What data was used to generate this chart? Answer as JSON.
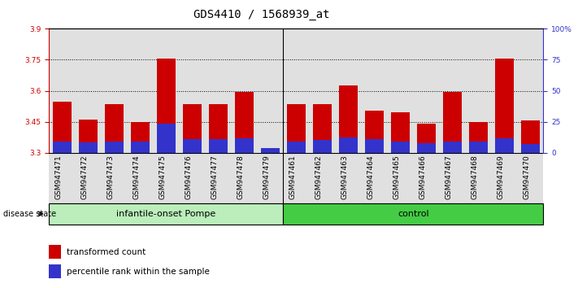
{
  "title": "GDS4410 / 1568939_at",
  "samples": [
    "GSM947471",
    "GSM947472",
    "GSM947473",
    "GSM947474",
    "GSM947475",
    "GSM947476",
    "GSM947477",
    "GSM947478",
    "GSM947479",
    "GSM947461",
    "GSM947462",
    "GSM947463",
    "GSM947464",
    "GSM947465",
    "GSM947466",
    "GSM947467",
    "GSM947468",
    "GSM947469",
    "GSM947470"
  ],
  "red_values": [
    3.545,
    3.46,
    3.535,
    3.45,
    3.755,
    3.535,
    3.535,
    3.595,
    3.315,
    3.535,
    3.535,
    3.625,
    3.505,
    3.495,
    3.44,
    3.595,
    3.45,
    3.755,
    3.455
  ],
  "blue_values": [
    3.355,
    3.348,
    3.355,
    3.352,
    3.44,
    3.365,
    3.365,
    3.37,
    3.322,
    3.355,
    3.36,
    3.375,
    3.365,
    3.355,
    3.345,
    3.352,
    3.352,
    3.368,
    3.342
  ],
  "ymin": 3.3,
  "ymax": 3.9,
  "yticks": [
    3.3,
    3.45,
    3.6,
    3.75,
    3.9
  ],
  "right_yticks": [
    0,
    25,
    50,
    75,
    100
  ],
  "group1_label": "infantile-onset Pompe",
  "group2_label": "control",
  "group1_count": 9,
  "group2_count": 10,
  "disease_state_label": "disease state",
  "legend1": "transformed count",
  "legend2": "percentile rank within the sample",
  "red_color": "#cc0000",
  "blue_color": "#3333cc",
  "group1_bg": "#bbeebb",
  "group2_bg": "#44cc44",
  "bar_bg": "#e0e0e0",
  "title_fontsize": 10,
  "tick_fontsize": 6.5,
  "label_fontsize": 8
}
